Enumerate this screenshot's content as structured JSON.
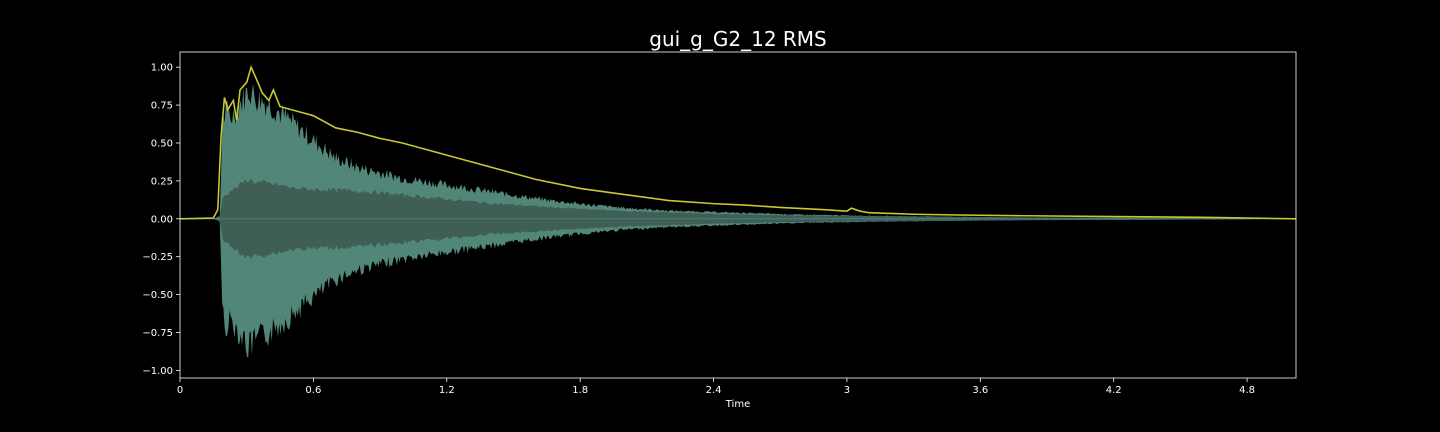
{
  "chart_data": {
    "type": "area",
    "title": "gui_g_G2_12 RMS",
    "xlabel": "Time",
    "ylabel": "",
    "xlim": [
      0,
      5.02
    ],
    "ylim": [
      -1.05,
      1.1
    ],
    "xticks": [
      0,
      0.6,
      1.2,
      1.8,
      2.4,
      3,
      3.6,
      4.2,
      4.8
    ],
    "xtick_labels": [
      "0",
      "0.6",
      "1.2",
      "1.8",
      "2.4",
      "3",
      "3.6",
      "4.2",
      "4.8"
    ],
    "yticks": [
      1.0,
      0.75,
      0.5,
      0.25,
      0.0,
      -0.25,
      -0.5,
      -0.75,
      -1.0
    ],
    "ytick_labels": [
      "1.00",
      "0.75",
      "0.50",
      "0.25",
      "0.00",
      "−0.25",
      "−0.50",
      "−0.75",
      "−1.00"
    ],
    "grid": false,
    "background": "#000000",
    "series": [
      {
        "kind": "envelope-line",
        "color": "#c8c832",
        "x": [
          0,
          0.15,
          0.17,
          0.185,
          0.2,
          0.215,
          0.24,
          0.255,
          0.27,
          0.3,
          0.32,
          0.35,
          0.37,
          0.4,
          0.42,
          0.45,
          0.5,
          0.55,
          0.6,
          0.7,
          0.8,
          0.9,
          1.0,
          1.2,
          1.4,
          1.6,
          1.8,
          2.0,
          2.2,
          2.4,
          2.55,
          2.7,
          2.9,
          3.0,
          3.02,
          3.04,
          3.06,
          3.1,
          3.2,
          3.3,
          3.5,
          3.8,
          4.2,
          4.6,
          5.02
        ],
        "y": [
          0.0,
          0.005,
          0.06,
          0.55,
          0.8,
          0.72,
          0.78,
          0.65,
          0.85,
          0.9,
          1.0,
          0.9,
          0.83,
          0.78,
          0.85,
          0.74,
          0.72,
          0.7,
          0.68,
          0.6,
          0.57,
          0.53,
          0.5,
          0.42,
          0.34,
          0.26,
          0.2,
          0.16,
          0.12,
          0.1,
          0.09,
          0.075,
          0.06,
          0.05,
          0.07,
          0.06,
          0.05,
          0.04,
          0.035,
          0.03,
          0.025,
          0.02,
          0.015,
          0.01,
          0.0
        ]
      },
      {
        "kind": "waveform-peak",
        "color": "#5f9e8e",
        "x": [
          0,
          0.15,
          0.18,
          0.19,
          0.21,
          0.23,
          0.27,
          0.31,
          0.34,
          0.4,
          0.5,
          0.6,
          0.7,
          0.8,
          0.9,
          1.0,
          1.2,
          1.4,
          1.6,
          1.8,
          2.0,
          2.2,
          2.4,
          2.6,
          2.8,
          3.0,
          3.2,
          3.5,
          3.8,
          4.2,
          4.6,
          5.02
        ],
        "y": [
          0.0,
          0.0,
          0.02,
          0.7,
          0.8,
          0.75,
          0.85,
          0.96,
          0.9,
          0.85,
          0.72,
          0.58,
          0.45,
          0.38,
          0.34,
          0.3,
          0.25,
          0.2,
          0.15,
          0.11,
          0.08,
          0.06,
          0.05,
          0.04,
          0.03,
          0.025,
          0.02,
          0.015,
          0.01,
          0.008,
          0.005,
          0.0
        ]
      },
      {
        "kind": "waveform-rms",
        "color": "#3f5f55",
        "x": [
          0,
          0.15,
          0.18,
          0.19,
          0.23,
          0.27,
          0.3,
          0.35,
          0.45,
          0.5,
          0.6,
          0.8,
          1.0,
          1.2,
          1.4,
          1.6,
          1.8,
          2.0,
          2.2,
          2.4,
          2.7,
          3.0,
          3.4,
          3.8,
          4.2,
          4.6,
          5.02
        ],
        "y": [
          0.0,
          0.0,
          0.01,
          0.15,
          0.2,
          0.24,
          0.28,
          0.26,
          0.24,
          0.22,
          0.21,
          0.2,
          0.17,
          0.14,
          0.11,
          0.09,
          0.07,
          0.055,
          0.045,
          0.035,
          0.025,
          0.02,
          0.015,
          0.01,
          0.007,
          0.004,
          0.0
        ]
      }
    ]
  }
}
